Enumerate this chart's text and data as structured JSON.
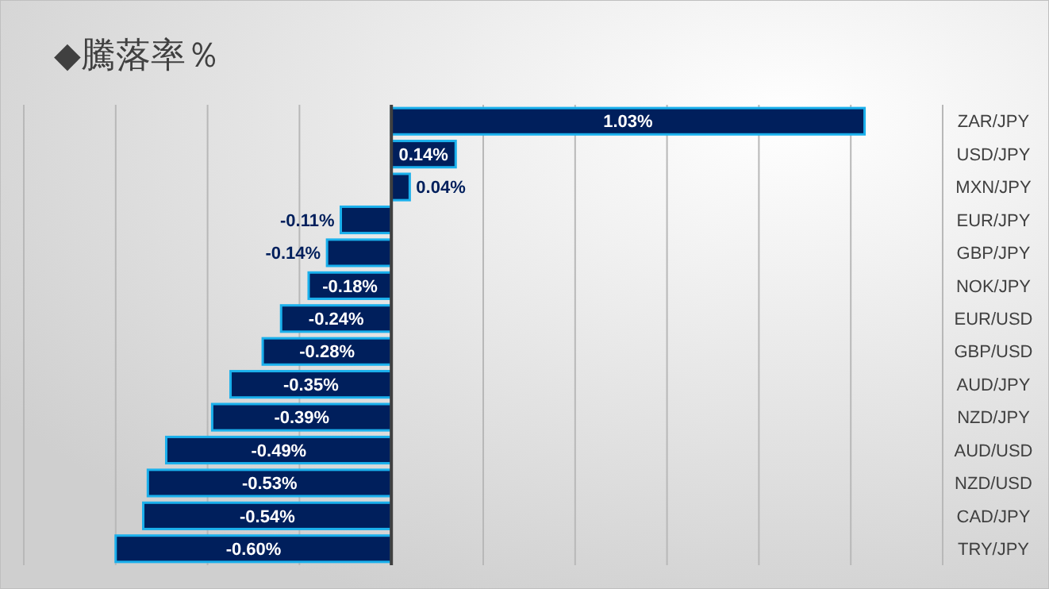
{
  "chart_data": {
    "type": "bar",
    "orientation": "horizontal",
    "title": "◆騰落率％",
    "categories": [
      "ZAR/JPY",
      "USD/JPY",
      "MXN/JPY",
      "EUR/JPY",
      "GBP/JPY",
      "NOK/JPY",
      "EUR/USD",
      "GBP/USD",
      "AUD/JPY",
      "NZD/JPY",
      "AUD/USD",
      "NZD/USD",
      "CAD/JPY",
      "TRY/JPY"
    ],
    "values": [
      1.03,
      0.14,
      0.04,
      -0.11,
      -0.14,
      -0.18,
      -0.24,
      -0.28,
      -0.35,
      -0.39,
      -0.49,
      -0.53,
      -0.54,
      -0.6
    ],
    "value_labels": [
      "1.03%",
      "0.14%",
      "0.04%",
      "-0.11%",
      "-0.14%",
      "-0.18%",
      "-0.24%",
      "-0.28%",
      "-0.35%",
      "-0.39%",
      "-0.49%",
      "-0.53%",
      "-0.54%",
      "-0.60%"
    ],
    "color": "#001f5c",
    "xlim": [
      -0.8,
      1.2
    ],
    "xticks": [
      {
        "value": -0.8,
        "label": null
      },
      {
        "value": -0.6,
        "label": null
      },
      {
        "value": -0.4,
        "label": null
      },
      {
        "value": -0.2,
        "label": null
      },
      {
        "value": 0,
        "label": null
      },
      {
        "value": 0.2,
        "label": null
      },
      {
        "value": 0.4,
        "label": null
      },
      {
        "value": 0.6,
        "label": null
      },
      {
        "value": 0.8,
        "label": null
      },
      {
        "value": 1,
        "label": null
      },
      {
        "value": 1.2,
        "label": null
      }
    ],
    "grid": "x",
    "tick_labels": "y"
  }
}
